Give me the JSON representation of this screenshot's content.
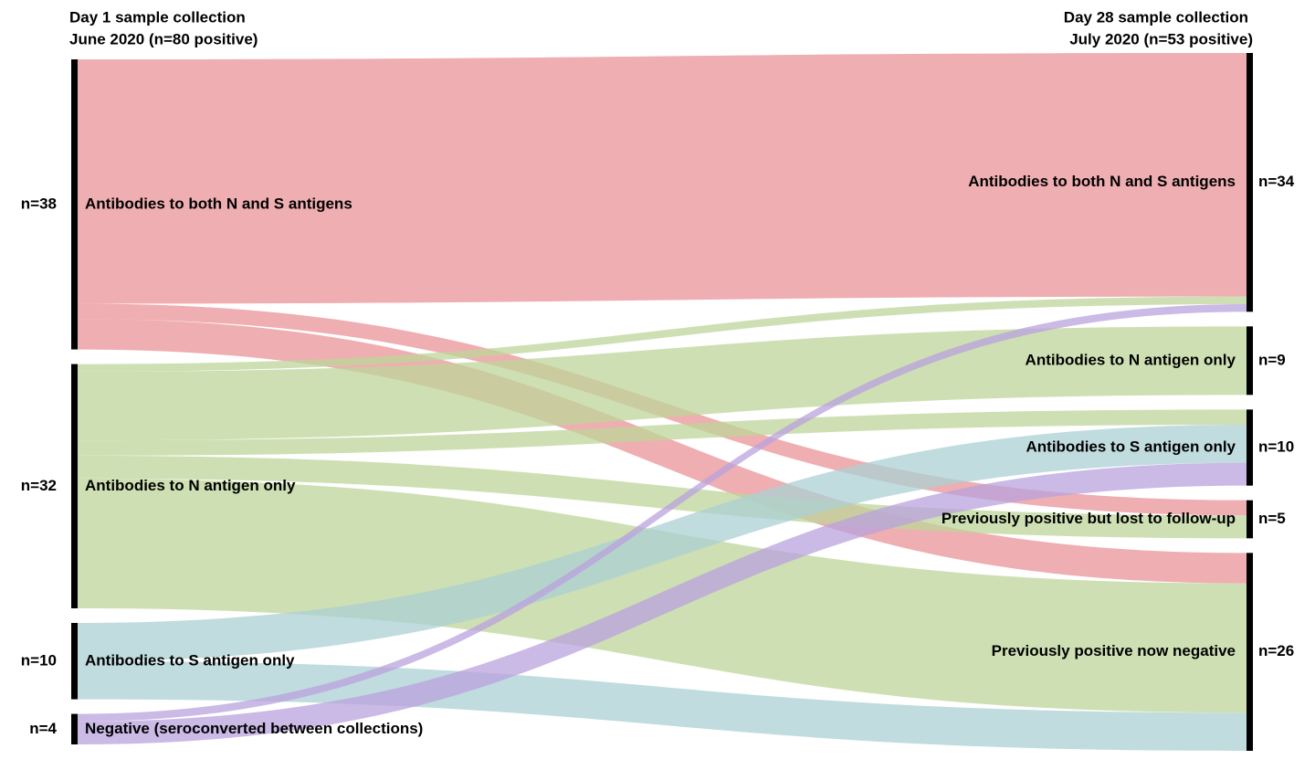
{
  "chart_data": {
    "type": "sankey",
    "left_header": [
      "Day 1  sample collection",
      "June 2020 (n=80 positive)"
    ],
    "right_header": [
      "Day 28 sample collection",
      "July 2020 (n=53 positive)"
    ],
    "left_nodes": [
      {
        "name": "Antibodies to both N and S antigens",
        "value": 38,
        "value_label": "n=38",
        "color": "#e99397"
      },
      {
        "name": "Antibodies to N antigen only",
        "value": 32,
        "value_label": "n=32",
        "color": "#bdd59a"
      },
      {
        "name": "Antibodies to S antigen only",
        "value": 10,
        "value_label": "n=10",
        "color": "#abd0d3"
      },
      {
        "name": "Negative (seroconverted between collections)",
        "value": 4,
        "value_label": "n=4",
        "color": "#b9a2de"
      }
    ],
    "right_nodes": [
      {
        "name": "Antibodies to both N and S antigens",
        "value": 34,
        "value_label": "n=34"
      },
      {
        "name": "Antibodies to N antigen only",
        "value": 9,
        "value_label": "n=9"
      },
      {
        "name": "Antibodies to S antigen only",
        "value": 10,
        "value_label": "n=10"
      },
      {
        "name": "Previously positive but lost to follow-up",
        "value": 5,
        "value_label": "n=5"
      },
      {
        "name": "Previously positive now negative",
        "value": 26,
        "value_label": "n=26"
      }
    ],
    "links": [
      {
        "source": 0,
        "target": 0,
        "value": 32
      },
      {
        "source": 0,
        "target": 3,
        "value": 2
      },
      {
        "source": 0,
        "target": 4,
        "value": 4
      },
      {
        "source": 1,
        "target": 0,
        "value": 1
      },
      {
        "source": 1,
        "target": 1,
        "value": 9
      },
      {
        "source": 1,
        "target": 2,
        "value": 2
      },
      {
        "source": 1,
        "target": 3,
        "value": 3
      },
      {
        "source": 1,
        "target": 4,
        "value": 17
      },
      {
        "source": 2,
        "target": 2,
        "value": 5
      },
      {
        "source": 2,
        "target": 4,
        "value": 5
      },
      {
        "source": 3,
        "target": 0,
        "value": 1
      },
      {
        "source": 3,
        "target": 2,
        "value": 3
      }
    ]
  }
}
